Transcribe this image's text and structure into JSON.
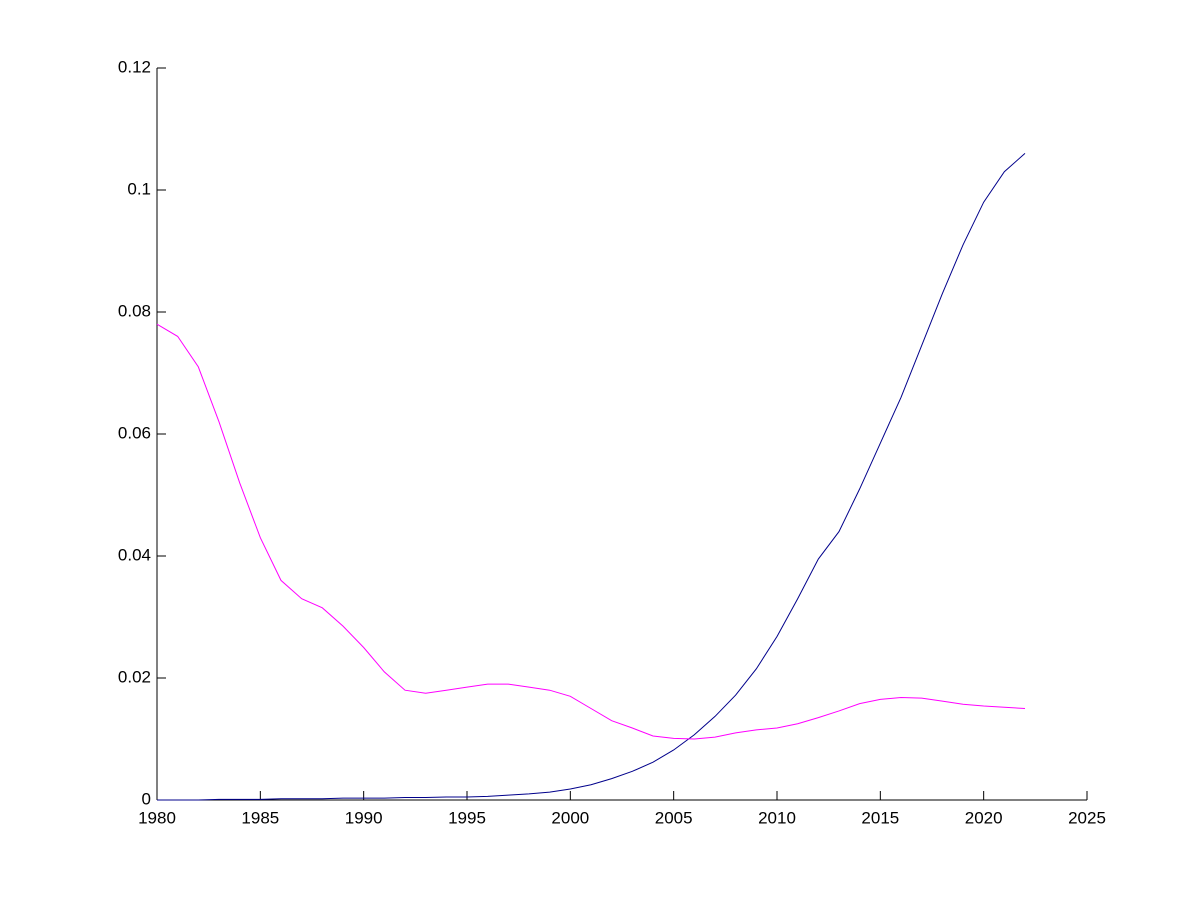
{
  "chart_data": {
    "type": "line",
    "x": [
      1980,
      1981,
      1982,
      1983,
      1984,
      1985,
      1986,
      1987,
      1988,
      1989,
      1990,
      1991,
      1992,
      1993,
      1994,
      1995,
      1996,
      1997,
      1998,
      1999,
      2000,
      2001,
      2002,
      2003,
      2004,
      2005,
      2006,
      2007,
      2008,
      2009,
      2010,
      2011,
      2012,
      2013,
      2014,
      2015,
      2016,
      2017,
      2018,
      2019,
      2020,
      2021,
      2022
    ],
    "series": [
      {
        "color": "#00008b",
        "values": [
          0,
          0,
          0,
          0.0001,
          0.0001,
          0.0001,
          0.0002,
          0.0002,
          0.0002,
          0.0003,
          0.0003,
          0.0003,
          0.0004,
          0.0004,
          0.0005,
          0.0005,
          0.0006,
          0.0008,
          0.001,
          0.0013,
          0.0018,
          0.0025,
          0.0035,
          0.0047,
          0.0062,
          0.0082,
          0.0107,
          0.0137,
          0.0172,
          0.0215,
          0.0268,
          0.033,
          0.0395,
          0.044,
          0.051,
          0.0585,
          0.066,
          0.0745,
          0.083,
          0.091,
          0.098,
          0.103,
          0.106
        ]
      },
      {
        "color": "#ff00ff",
        "values": [
          0.078,
          0.076,
          0.071,
          0.062,
          0.052,
          0.043,
          0.036,
          0.033,
          0.0315,
          0.0285,
          0.025,
          0.021,
          0.018,
          0.0175,
          0.018,
          0.0185,
          0.019,
          0.019,
          0.0185,
          0.018,
          0.017,
          0.015,
          0.013,
          0.0118,
          0.0105,
          0.0101,
          0.01,
          0.0103,
          0.011,
          0.0115,
          0.0118,
          0.0125,
          0.0135,
          0.0146,
          0.0158,
          0.0165,
          0.0168,
          0.0167,
          0.0162,
          0.0157,
          0.0154,
          0.0152,
          0.015
        ]
      }
    ],
    "xlim": [
      1980,
      2025
    ],
    "xticks": [
      1980,
      1985,
      1990,
      1995,
      2000,
      2005,
      2010,
      2015,
      2020,
      2025
    ],
    "ylim": [
      0,
      0.12
    ],
    "yticks": [
      0,
      0.02,
      0.04,
      0.06,
      0.08,
      0.1,
      0.12
    ]
  }
}
